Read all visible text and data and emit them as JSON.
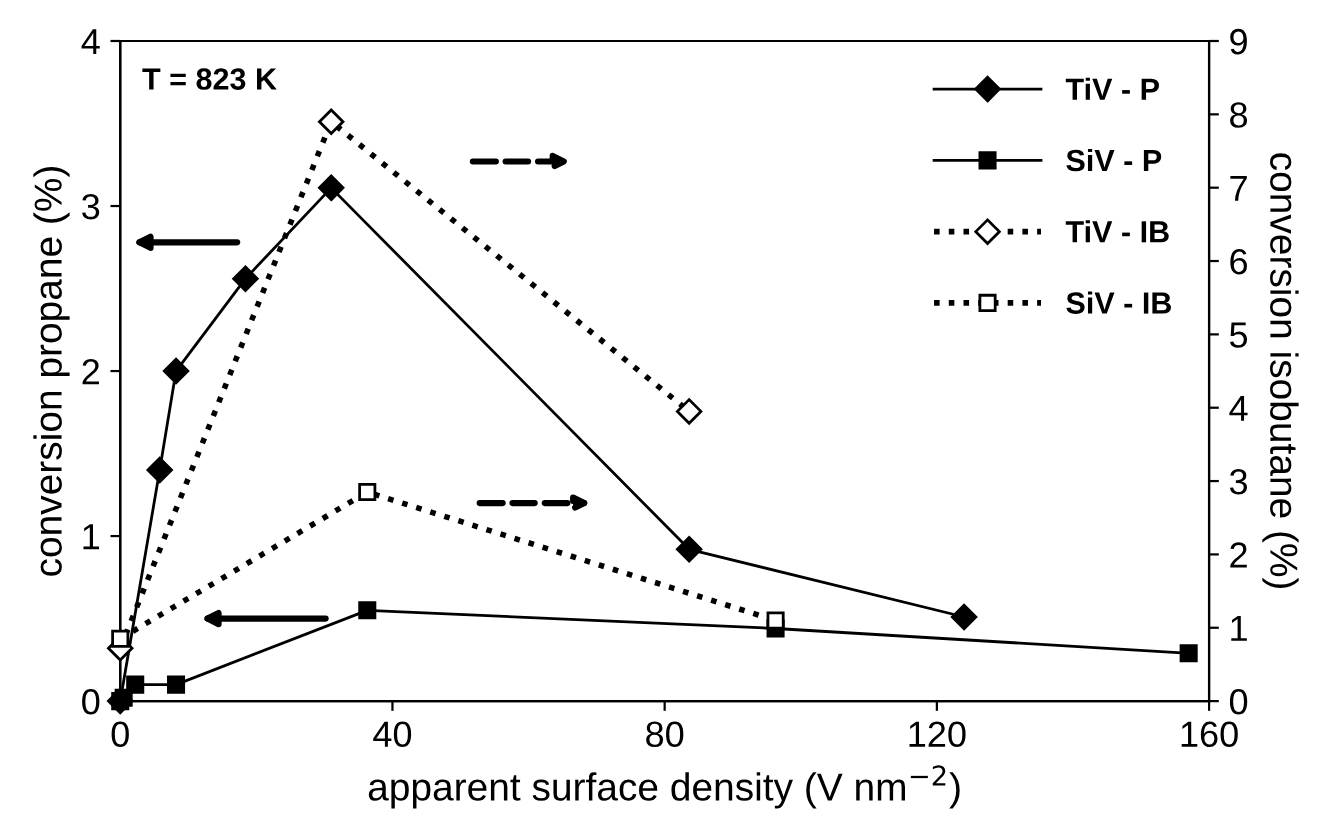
{
  "chart_data": {
    "type": "line",
    "xlabel": "apparent surface density (V nm$^{−2}$)",
    "ylabel": "conversion propane (%)",
    "y2label": "conversion isobutane (%)",
    "xlim": [
      0,
      160
    ],
    "xticks": [
      0,
      40,
      80,
      120,
      160
    ],
    "ylim": [
      0,
      4
    ],
    "yticks": [
      0,
      1,
      2,
      3,
      4
    ],
    "y2lim": [
      0,
      9
    ],
    "y2ticks": [
      0,
      1,
      2,
      3,
      4,
      5,
      6,
      7,
      8,
      9
    ],
    "grid": false,
    "legend": "top right",
    "annotations": [
      "T = 823 K"
    ],
    "series": [
      {
        "name": "TiV - P",
        "color": "#000000",
        "marker": "diamond",
        "line_style": "solid",
        "x": [
          0,
          5.8,
          8.2,
          18.4,
          31,
          83.6,
          124
        ],
        "values": [
          0,
          1.4,
          2.0,
          2.56,
          3.11,
          0.92,
          0.51
        ]
      },
      {
        "name": "SiV - P",
        "color": "#000000",
        "marker": "square",
        "line_style": "solid",
        "x": [
          0,
          0.5,
          2.2,
          8.2,
          36.3,
          96.3,
          157
        ],
        "values": [
          0,
          0.02,
          0.1,
          0.1,
          0.55,
          0.44,
          0.29
        ]
      },
      {
        "name": "TiV - IB",
        "color": "#000000",
        "marker": "diamond",
        "line_style": "dotted",
        "axis": "y2",
        "x": [
          0,
          31,
          83.6
        ],
        "values": [
          0.72,
          7.9,
          3.95
        ]
      },
      {
        "name": "SiV - IB",
        "color": "#000000",
        "marker": "square",
        "line_style": "dotted",
        "axis": "y2",
        "x": [
          0,
          36.3,
          96.3
        ],
        "values": [
          0.85,
          2.85,
          1.1
        ]
      }
    ]
  }
}
